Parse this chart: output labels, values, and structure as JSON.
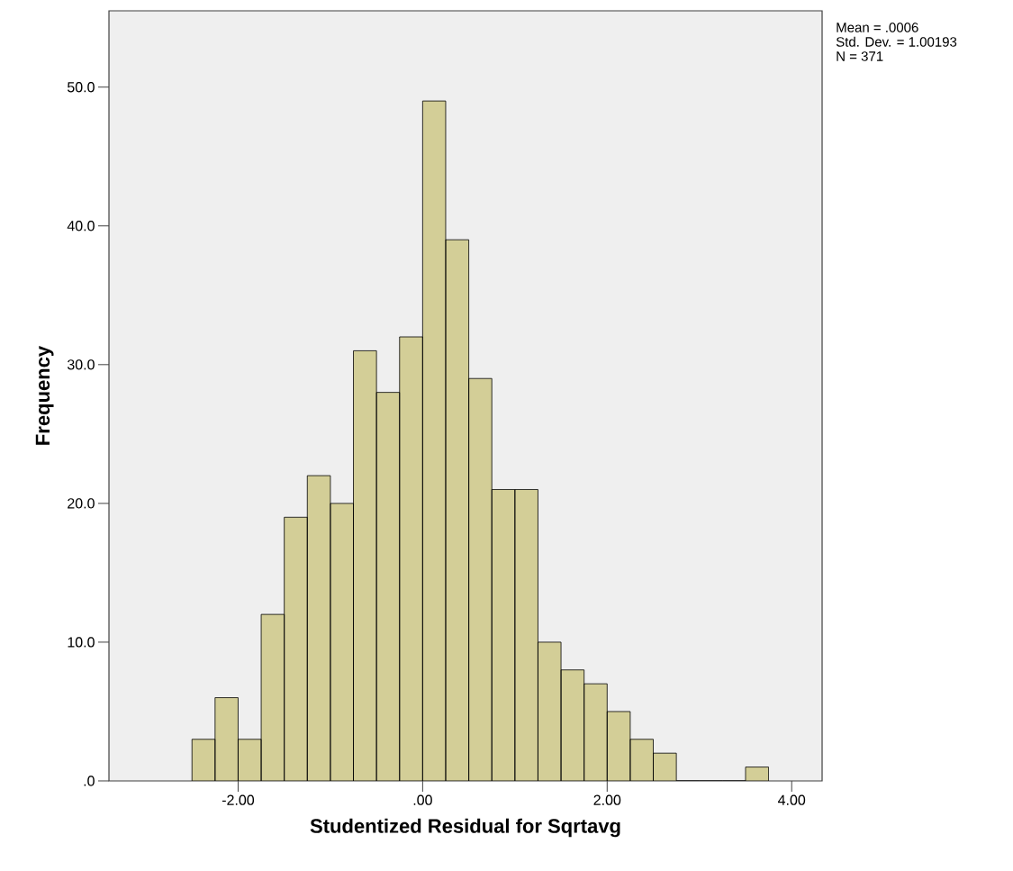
{
  "chart_data": {
    "type": "histogram",
    "xlabel": "Studentized Residual for Sqrtavg",
    "ylabel": "Frequency",
    "annotations": [
      "Mean = .0006",
      "Std. Dev. = 1.00193",
      "N = 371"
    ],
    "bins": [
      -2.5,
      -2.25,
      -2.0,
      -1.75,
      -1.5,
      -1.25,
      -1.0,
      -0.75,
      -0.5,
      -0.25,
      0.0,
      0.25,
      0.5,
      0.75,
      1.0,
      1.25,
      1.5,
      1.75,
      2.0,
      2.25,
      2.5,
      2.75,
      3.0,
      3.25,
      3.5,
      3.75
    ],
    "values": [
      3,
      6,
      3,
      12,
      19,
      22,
      20,
      31,
      28,
      32,
      49,
      39,
      29,
      21,
      21,
      10,
      8,
      7,
      5,
      3,
      2,
      0,
      0,
      0,
      1
    ],
    "color": "#d3ce97",
    "xlim": [
      -3.4,
      4.33
    ],
    "ylim": [
      0,
      55.5
    ],
    "xticks": [
      {
        "value": -2,
        "label": "-2.00"
      },
      {
        "value": 0,
        "label": ".00"
      },
      {
        "value": 2,
        "label": "2.00"
      },
      {
        "value": 4,
        "label": "4.00"
      }
    ],
    "yticks": [
      {
        "value": 0,
        "label": ".0"
      },
      {
        "value": 10,
        "label": "10.0"
      },
      {
        "value": 20,
        "label": "20.0"
      },
      {
        "value": 30,
        "label": "30.0"
      },
      {
        "value": 40,
        "label": "40.0"
      },
      {
        "value": 50,
        "label": "50.0"
      }
    ]
  }
}
